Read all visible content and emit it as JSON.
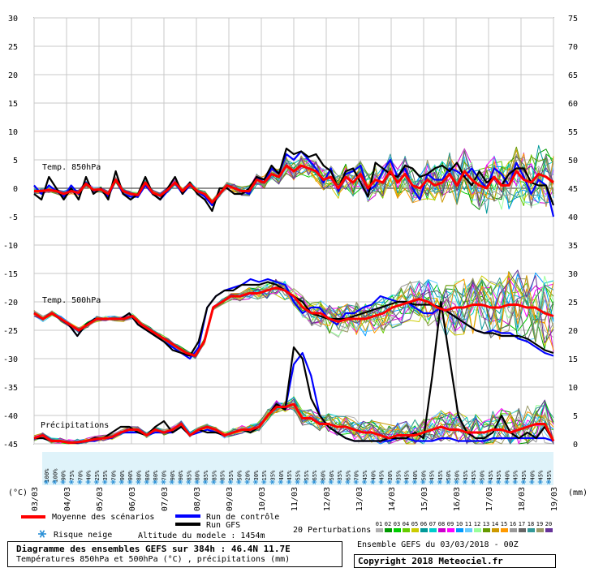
{
  "chart_data": {
    "type": "line",
    "title": "Diagramme des ensembles GEFS sur 384h : 46.4N 11.7E",
    "subtitle": "Températures 850hPa et 500hPa (°C) , précipitations (mm)",
    "left_axis": {
      "unit_label": "(°C)",
      "min": -45,
      "max": 30,
      "ticks": [
        30,
        25,
        20,
        15,
        10,
        5,
        0,
        -5,
        -10,
        -15,
        -20,
        -25,
        -30,
        -35,
        -40,
        -45
      ]
    },
    "right_axis": {
      "unit_label": "(mm)",
      "min": 0,
      "max": 75,
      "ticks": [
        75,
        70,
        65,
        60,
        55,
        50,
        45,
        40,
        35,
        30,
        25,
        20,
        15,
        10,
        5,
        0
      ]
    },
    "x_dates": [
      "03/03",
      "04/03",
      "05/03",
      "06/03",
      "07/03",
      "08/03",
      "09/03",
      "10/03",
      "11/03",
      "12/03",
      "13/03",
      "14/03",
      "15/03",
      "16/03",
      "17/03",
      "18/03",
      "19/03"
    ],
    "panel_labels": {
      "t850": "Temp. 850hPa",
      "t500": "Temp. 500hPa",
      "precip": "Précipitations"
    },
    "snow_risk_pct": [
      "100%",
      "100%",
      "90%",
      "75%",
      "70%",
      "40%",
      "25%",
      "35%",
      "70%",
      "90%",
      "90%",
      "80%",
      "80%",
      "80%",
      "70%",
      "90%",
      "90%",
      "85%",
      "80%",
      "85%",
      "85%",
      "85%",
      "55%",
      "50%",
      "20%",
      "30%",
      "15%",
      "35%",
      "40%",
      "45%",
      "55%",
      "55%",
      "65%",
      "60%",
      "50%",
      "35%",
      "65%",
      "70%",
      "45%",
      "40%",
      "45%",
      "30%",
      "35%",
      "45%",
      "40%",
      "50%",
      "45%",
      "45%",
      "50%",
      "50%",
      "45%",
      "45%",
      "50%",
      "45%",
      "45%",
      "40%",
      "45%",
      "45%",
      "40%",
      "45%",
      "45%"
    ],
    "series": [
      {
        "name": "Moyenne des scénarios",
        "color": "#ff0000",
        "t850": [
          -0.5,
          -0.5,
          -0.3,
          -0.5,
          -1.0,
          -0.5,
          -0.8,
          0.8,
          -0.3,
          -0.2,
          -1.0,
          1.5,
          -0.5,
          -1.0,
          -1.2,
          1.0,
          -0.8,
          -1.3,
          -0.3,
          1.0,
          -0.5,
          0.7,
          -0.5,
          -1.0,
          -2.5,
          -1.0,
          0.5,
          0.0,
          -0.5,
          -0.5,
          1.5,
          1.0,
          2.5,
          2.0,
          4.0,
          3.0,
          4.0,
          3.5,
          3.0,
          1.5,
          2.0,
          0.0,
          2.0,
          1.0,
          2.5,
          0.0,
          1.5,
          1.0,
          3.0,
          1.0,
          2.5,
          0.5,
          0.0,
          1.5,
          0.5,
          1.0,
          2.5,
          0.5,
          3.0,
          1.5,
          0.5,
          0.0,
          2.0,
          0.5,
          0.5,
          3.0,
          1.5,
          1.0,
          2.5,
          2.0,
          1.0
        ],
        "t500": [
          -22,
          -23,
          -22,
          -23,
          -24,
          -25,
          -24,
          -23,
          -23,
          -23,
          -23,
          -22.5,
          -24,
          -25,
          -26,
          -27,
          -28,
          -29,
          -29.5,
          -27,
          -21,
          -20,
          -19,
          -19,
          -18.5,
          -18.5,
          -18,
          -17.5,
          -18,
          -19,
          -21,
          -22,
          -22,
          -23,
          -23.5,
          -23,
          -23,
          -23,
          -22.5,
          -22,
          -21,
          -20.5,
          -20,
          -19.5,
          -20,
          -21,
          -21.5,
          -21,
          -21,
          -20.5,
          -20.5,
          -21,
          -21,
          -20.5,
          -20.5,
          -21,
          -21,
          -22,
          -22.5
        ],
        "precip": [
          1,
          1.5,
          0.5,
          0.5,
          0.2,
          0.3,
          0.5,
          0.8,
          1,
          1.2,
          2,
          2.5,
          2.5,
          1.5,
          2.5,
          2,
          2.5,
          3.5,
          1.5,
          2.5,
          3,
          2.5,
          1.5,
          2,
          2.5,
          2.5,
          3,
          5,
          6.5,
          6.5,
          7,
          4.5,
          4.5,
          3.5,
          3.5,
          3,
          3,
          2.5,
          2,
          2,
          1.5,
          1,
          1.5,
          1.5,
          1.5,
          2,
          2.5,
          3,
          2.5,
          2.5,
          2,
          2,
          2,
          2.5,
          2.5,
          2,
          2.5,
          3,
          3.5,
          3.5,
          0.5
        ]
      },
      {
        "name": "Run de contrôle",
        "color": "#0000ff",
        "t850": [
          0.5,
          -1.0,
          0.5,
          -0.5,
          -1.5,
          0.5,
          -1.0,
          1.0,
          -0.5,
          0.0,
          -1.5,
          1.5,
          -1.0,
          -1.5,
          -1.5,
          0.5,
          -1.0,
          -2.0,
          -0.5,
          1.0,
          -1.0,
          0.5,
          -0.5,
          -1.5,
          -3.0,
          -1.0,
          0.5,
          0.0,
          -0.5,
          -1.0,
          2.0,
          1.0,
          3.5,
          2.5,
          6.0,
          5.0,
          6.5,
          5.0,
          3.5,
          1.0,
          3.5,
          -0.5,
          2.5,
          3.0,
          4.0,
          -0.5,
          0.5,
          3.0,
          5.0,
          2.0,
          3.5,
          0.0,
          -2.0,
          2.5,
          1.5,
          1.5,
          3.5,
          3.0,
          2.0,
          3.5,
          1.5,
          0.0,
          3.5,
          2.5,
          0.5,
          4.5,
          2.0,
          -1.0,
          1.5,
          0.5,
          -5.0
        ],
        "t500": [
          -22,
          -23,
          -22,
          -23,
          -24,
          -26,
          -24,
          -23,
          -23,
          -23,
          -23,
          -22,
          -24,
          -25,
          -26,
          -27,
          -28,
          -29,
          -30,
          -28,
          -21,
          -19,
          -18,
          -17.5,
          -17,
          -16,
          -16.5,
          -16,
          -16.5,
          -17,
          -20,
          -22,
          -21,
          -21,
          -23,
          -24,
          -22,
          -22,
          -21,
          -20.5,
          -19,
          -19.5,
          -20,
          -20,
          -21,
          -22,
          -22,
          -21,
          -22,
          -23,
          -24,
          -25,
          -25.5,
          -25,
          -25.5,
          -25.5,
          -26.5,
          -27,
          -28,
          -29,
          -29.5
        ],
        "precip": [
          1,
          1,
          0.5,
          0.5,
          0.2,
          0.2,
          0.5,
          0.5,
          1,
          1,
          2,
          2,
          2,
          1.5,
          2,
          2,
          2,
          3,
          1.5,
          2,
          2.5,
          2,
          1.5,
          2,
          2.5,
          2,
          3,
          5,
          7,
          6,
          14,
          16,
          12,
          5,
          3,
          2,
          1,
          0.5,
          0.5,
          0.5,
          0.5,
          0.5,
          1,
          1,
          0.5,
          0.5,
          0.5,
          1,
          1,
          0.5,
          0.5,
          0.5,
          0.5,
          1,
          1,
          1,
          1,
          1,
          1,
          1,
          0.5
        ]
      },
      {
        "name": "Run GFS",
        "color": "#000000",
        "t850": [
          -1.0,
          -2.0,
          2.0,
          0.0,
          -2.0,
          0.0,
          -2.0,
          2.0,
          -1.0,
          0.0,
          -2.0,
          3.0,
          -1.0,
          -2.0,
          -1.0,
          2.0,
          -1.0,
          -2.0,
          0.0,
          2.0,
          -1.0,
          1.0,
          -1.0,
          -2.0,
          -4.0,
          0.0,
          0.0,
          -1.0,
          -1.0,
          0.0,
          2.0,
          1.5,
          4.0,
          2.5,
          7.0,
          6.0,
          6.5,
          5.5,
          6.0,
          4.0,
          3.0,
          0.0,
          3.0,
          3.5,
          1.0,
          -1.5,
          4.5,
          3.5,
          2.5,
          2.0,
          4.0,
          3.5,
          2.0,
          2.5,
          3.5,
          4.0,
          3.0,
          4.5,
          2.0,
          0.5,
          3.0,
          1.0,
          2.0,
          0.5,
          2.5,
          3.5,
          3.5,
          1.0,
          0.5,
          0.5,
          -3.0
        ],
        "t500": [
          -22,
          -23,
          -22,
          -23,
          -24,
          -26,
          -24,
          -23,
          -23,
          -23,
          -23,
          -22,
          -24,
          -25,
          -26,
          -27,
          -28.5,
          -29,
          -29.5,
          -27,
          -21,
          -19,
          -18,
          -18,
          -17,
          -17,
          -17,
          -16.5,
          -17,
          -18,
          -19,
          -20,
          -22,
          -22.5,
          -23,
          -23,
          -23,
          -22.5,
          -22,
          -21.5,
          -21,
          -20.5,
          -20,
          -20,
          -20.5,
          -20.5,
          -20.5,
          -21,
          -22,
          -23,
          -24,
          -25,
          -25.5,
          -25.5,
          -26,
          -26,
          -26,
          -26.5,
          -27.5,
          -28.5,
          -29
        ],
        "precip": [
          1,
          1,
          0.5,
          0.5,
          0.2,
          0.2,
          0.5,
          1,
          1,
          2,
          3,
          3,
          2,
          1.5,
          3,
          4,
          2,
          3,
          1.5,
          2.5,
          2,
          2,
          1.5,
          2,
          2.5,
          2,
          3,
          5,
          7,
          6,
          17,
          15,
          8,
          5,
          3,
          2,
          1,
          0.5,
          0.5,
          0.5,
          0.5,
          1,
          1,
          1,
          2,
          1,
          12,
          25,
          15,
          5,
          2,
          1,
          1,
          2,
          5,
          2,
          1,
          2,
          1,
          3,
          0.5
        ]
      }
    ],
    "perturbation_count": 20
  },
  "legend": {
    "mean_label": "Moyenne des scénarios",
    "control_label": "Run de contrôle",
    "gfs_label": "Run GFS",
    "perturbations_label": "20 Perturbations",
    "perturbation_numbers": [
      "01",
      "02",
      "03",
      "04",
      "05",
      "06",
      "07",
      "08",
      "09",
      "10",
      "11",
      "12",
      "13",
      "14",
      "15",
      "16",
      "17",
      "18",
      "19",
      "20"
    ],
    "perturbation_colors": [
      "#b0b0b0",
      "#009900",
      "#00cc00",
      "#66cc00",
      "#cccc00",
      "#009999",
      "#00cccc",
      "#cc00cc",
      "#ff00ff",
      "#0099ff",
      "#66ccff",
      "#99ff99",
      "#669900",
      "#cc9900",
      "#ff9900",
      "#999999",
      "#666666",
      "#339999",
      "#999966",
      "#663399"
    ],
    "snow_label": "Risque neige",
    "altitude_label": "Altitude du modele : 1454m"
  },
  "footer": {
    "title": "Diagramme des ensembles GEFS sur 384h : 46.4N 11.7E",
    "subtitle": "Températures 850hPa et 500hPa (°C) , précipitations (mm)",
    "ensemble_info": "Ensemble GEFS du 03/03/2018 - 00Z",
    "copyright": "Copyright 2018 Meteociel.fr"
  }
}
